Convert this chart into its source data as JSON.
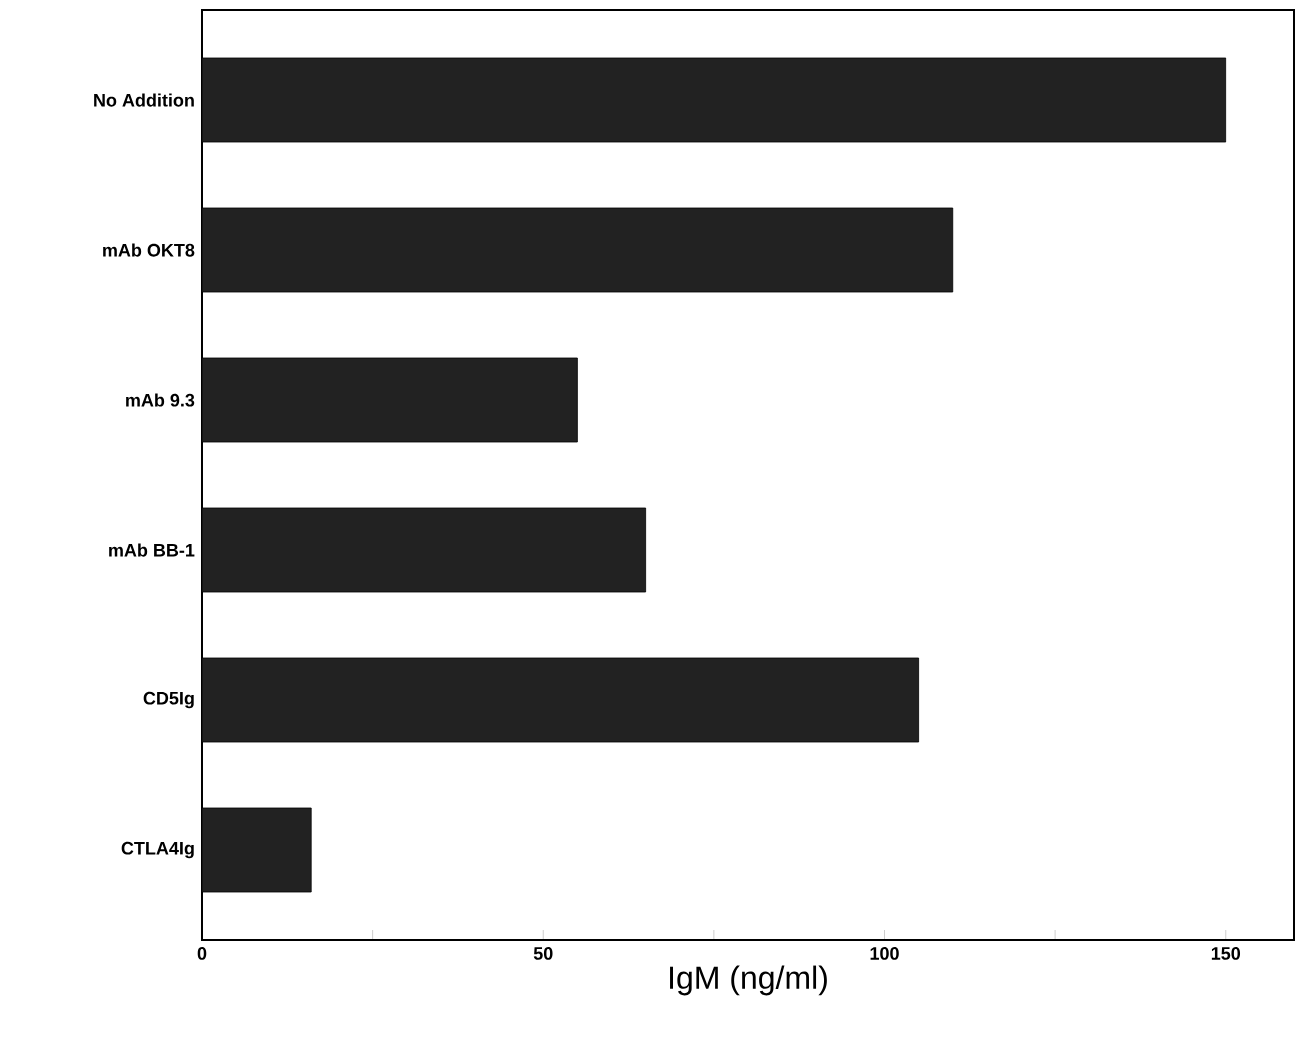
{
  "chart_data": {
    "type": "bar",
    "orientation": "horizontal",
    "xlabel": "IgM (ng/ml)",
    "categories": [
      "No Addition",
      "mAb OKT8",
      "mAb 9.3",
      "mAb BB-1",
      "CD5Ig",
      "CTLA4Ig"
    ],
    "values": [
      150,
      110,
      55,
      65,
      105,
      16
    ],
    "color": "#222222",
    "xlim": [
      0,
      160
    ],
    "xticks": [
      0,
      {
        "value": 25,
        "label": null
      },
      50,
      {
        "value": 75,
        "label": null
      },
      100,
      {
        "value": 125,
        "label": null
      },
      150
    ],
    "grid": false
  }
}
